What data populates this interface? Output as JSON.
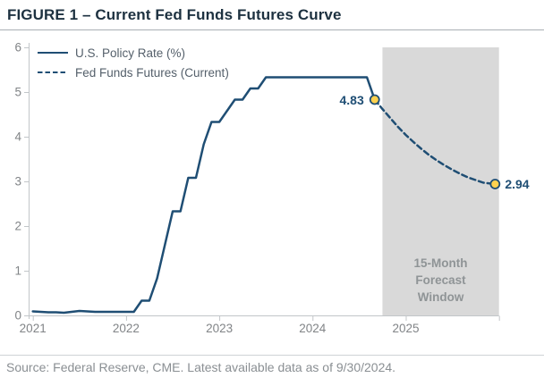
{
  "page": {
    "title": "FIGURE 1 – Current Fed Funds Futures Curve",
    "source": "Source: Federal Reserve, CME. Latest available data as of 9/30/2024."
  },
  "colors": {
    "navy": "#1f4e74",
    "title_text": "#1d3140",
    "axis_gray": "#c2c6c9",
    "tick_text": "#818487",
    "legend_text": "#55606b",
    "window_fill": "#d9d9d9",
    "window_text": "#8f9496",
    "marker_fill": "#ffd24f",
    "source_text": "#8a8f93"
  },
  "chart_data": {
    "type": "line",
    "title": "FIGURE 1 – Current Fed Funds Futures Curve",
    "x_unit": "months since Jan 2021, monthly data",
    "ylim": [
      0,
      6
    ],
    "yticks": [
      0,
      1,
      2,
      3,
      4,
      5,
      6
    ],
    "xticks": [
      {
        "month": 0,
        "label": "2021"
      },
      {
        "month": 12,
        "label": "2022"
      },
      {
        "month": 24,
        "label": "2023"
      },
      {
        "month": 36,
        "label": "2024"
      },
      {
        "month": 48,
        "label": "2025"
      },
      {
        "month": 60,
        "label": ""
      }
    ],
    "grid": false,
    "legend_position": "top-left",
    "series": [
      {
        "name": "U.S. Policy Rate (%)",
        "style": "solid",
        "months": [
          0,
          1,
          2,
          3,
          4,
          5,
          6,
          7,
          8,
          9,
          10,
          11,
          12,
          13,
          14,
          15,
          16,
          17,
          18,
          19,
          20,
          21,
          22,
          23,
          24,
          25,
          26,
          27,
          28,
          29,
          30,
          31,
          32,
          33,
          34,
          35,
          36,
          37,
          38,
          39,
          40,
          41,
          42,
          43,
          44
        ],
        "values": [
          0.09,
          0.08,
          0.07,
          0.07,
          0.06,
          0.08,
          0.1,
          0.09,
          0.08,
          0.08,
          0.08,
          0.08,
          0.08,
          0.08,
          0.33,
          0.33,
          0.83,
          1.58,
          2.33,
          2.33,
          3.08,
          3.08,
          3.83,
          4.33,
          4.33,
          4.58,
          4.83,
          4.83,
          5.08,
          5.08,
          5.33,
          5.33,
          5.33,
          5.33,
          5.33,
          5.33,
          5.33,
          5.33,
          5.33,
          5.33,
          5.33,
          5.33,
          5.33,
          5.33,
          4.83
        ]
      },
      {
        "name": "Fed Funds Futures (Current)",
        "style": "dashed",
        "months": [
          44,
          45,
          46,
          47,
          48,
          49,
          50,
          51,
          52,
          53,
          54,
          55,
          56,
          57,
          58,
          59.5
        ],
        "values": [
          4.83,
          4.62,
          4.42,
          4.22,
          4.04,
          3.88,
          3.73,
          3.59,
          3.47,
          3.36,
          3.26,
          3.17,
          3.09,
          3.03,
          2.97,
          2.94
        ]
      }
    ],
    "annotations": [
      {
        "label": "4.83",
        "month": 44,
        "value": 4.83,
        "side": "left"
      },
      {
        "label": "2.94",
        "month": 59.5,
        "value": 2.94,
        "side": "right"
      }
    ],
    "forecast_window": {
      "label_lines": [
        "15-Month",
        "Forecast",
        "Window"
      ],
      "start_month": 45,
      "end_month": 60
    }
  }
}
